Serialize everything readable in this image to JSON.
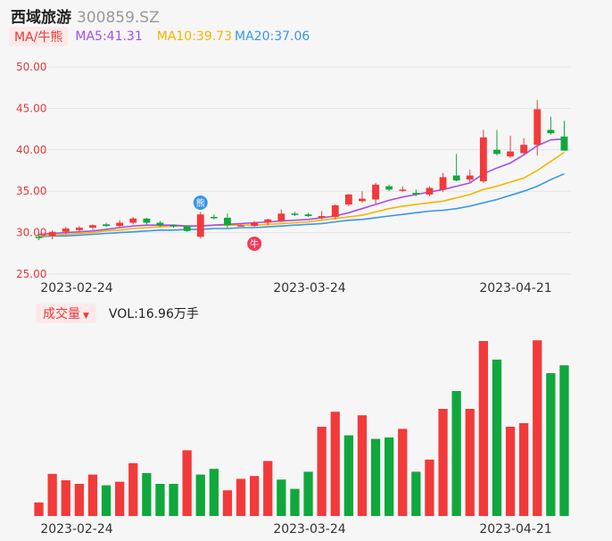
{
  "header": {
    "name": "西域旅游",
    "code": "300859.SZ"
  },
  "ma_bar": {
    "tag": "MA/牛熊",
    "ma5": "MA5:41.31",
    "ma10": "MA10:39.73",
    "ma20": "MA20:37.06"
  },
  "vol_bar": {
    "tag": "成交量",
    "value": "VOL:16.96万手"
  },
  "colors": {
    "up": "#f23a3a",
    "down": "#0fa83c",
    "ma5": "#a64ee8",
    "ma10": "#f5b400",
    "ma20": "#3a95ea"
  },
  "chart_data": [
    {
      "type": "candlestick",
      "ylim": [
        25,
        50
      ],
      "y_ticks": [
        "50.00",
        "45.00",
        "40.00",
        "35.00",
        "30.00",
        "25.00"
      ],
      "x_ticks": [
        "2023-02-24",
        "2023-03-24",
        "2023-04-21"
      ],
      "markers": [
        "熊",
        "牛"
      ],
      "ohlc": [
        [
          29.5,
          29.8,
          29.1,
          29.4
        ],
        [
          29.6,
          30.3,
          29.2,
          30.1
        ],
        [
          30.1,
          30.7,
          29.8,
          30.5
        ],
        [
          30.3,
          30.8,
          30.0,
          30.6
        ],
        [
          30.6,
          31.0,
          30.3,
          30.9
        ],
        [
          31.0,
          31.2,
          30.7,
          30.8
        ],
        [
          30.8,
          31.5,
          30.6,
          31.2
        ],
        [
          31.2,
          31.9,
          31.0,
          31.7
        ],
        [
          31.7,
          31.8,
          31.0,
          31.2
        ],
        [
          31.2,
          31.4,
          30.7,
          30.9
        ],
        [
          30.9,
          31.0,
          30.6,
          30.8
        ],
        [
          30.8,
          30.9,
          30.1,
          30.2
        ],
        [
          29.5,
          32.5,
          29.3,
          32.2
        ],
        [
          31.9,
          32.2,
          31.6,
          31.8
        ],
        [
          31.8,
          32.3,
          30.5,
          30.9
        ],
        [
          30.9,
          31.0,
          30.8,
          30.9
        ],
        [
          30.8,
          31.4,
          30.7,
          31.2
        ],
        [
          31.2,
          31.7,
          30.9,
          31.6
        ],
        [
          31.4,
          32.8,
          31.3,
          32.3
        ],
        [
          32.3,
          32.5,
          32.0,
          32.2
        ],
        [
          32.2,
          32.4,
          31.9,
          32.0
        ],
        [
          31.8,
          32.6,
          31.6,
          32.0
        ],
        [
          31.9,
          33.4,
          31.6,
          33.3
        ],
        [
          33.4,
          34.7,
          33.2,
          34.6
        ],
        [
          33.8,
          35.0,
          33.6,
          34.1
        ],
        [
          34.0,
          36.0,
          33.5,
          35.8
        ],
        [
          35.6,
          35.8,
          35.0,
          35.2
        ],
        [
          35.1,
          35.6,
          34.9,
          35.2
        ],
        [
          34.8,
          35.2,
          34.4,
          34.6
        ],
        [
          34.6,
          35.6,
          34.4,
          35.4
        ],
        [
          35.2,
          37.2,
          34.9,
          36.7
        ],
        [
          36.9,
          39.5,
          36.2,
          36.3
        ],
        [
          36.4,
          37.6,
          36.1,
          36.9
        ],
        [
          36.2,
          42.4,
          36.0,
          41.5
        ],
        [
          40.0,
          42.4,
          39.3,
          39.5
        ],
        [
          39.2,
          41.7,
          39.0,
          39.8
        ],
        [
          39.6,
          41.4,
          39.4,
          40.6
        ],
        [
          40.6,
          46.0,
          39.3,
          44.9
        ],
        [
          42.4,
          44.0,
          41.8,
          42.0
        ],
        [
          41.6,
          43.5,
          39.9,
          39.9
        ]
      ],
      "ma5": [
        29.8,
        29.9,
        30.0,
        30.1,
        30.2,
        30.4,
        30.6,
        30.8,
        30.9,
        30.9,
        30.9,
        30.8,
        30.8,
        30.9,
        31.0,
        31.1,
        31.2,
        31.3,
        31.4,
        31.5,
        31.6,
        31.8,
        32.0,
        32.4,
        32.9,
        33.4,
        33.9,
        34.3,
        34.6,
        34.9,
        35.2,
        35.6,
        36.0,
        37.1,
        37.8,
        38.4,
        39.4,
        40.5,
        41.2,
        41.3
      ],
      "ma10": [
        29.6,
        29.7,
        29.8,
        29.9,
        30.0,
        30.2,
        30.3,
        30.5,
        30.6,
        30.7,
        30.8,
        30.8,
        30.8,
        30.9,
        30.9,
        30.9,
        30.9,
        31.0,
        31.1,
        31.2,
        31.3,
        31.5,
        31.7,
        31.9,
        32.1,
        32.5,
        32.9,
        33.2,
        33.4,
        33.6,
        33.8,
        34.2,
        34.6,
        35.2,
        35.6,
        36.1,
        36.6,
        37.5,
        38.6,
        39.7
      ],
      "ma20": [
        29.5,
        29.6,
        29.6,
        29.7,
        29.8,
        29.9,
        30.0,
        30.1,
        30.2,
        30.3,
        30.3,
        30.4,
        30.4,
        30.5,
        30.5,
        30.6,
        30.6,
        30.7,
        30.8,
        30.9,
        31.0,
        31.1,
        31.3,
        31.5,
        31.6,
        31.8,
        32.0,
        32.2,
        32.4,
        32.6,
        32.7,
        32.9,
        33.2,
        33.6,
        34.0,
        34.5,
        35.0,
        35.6,
        36.4,
        37.1
      ]
    },
    {
      "type": "bar",
      "name": "VOL",
      "x_ticks": [
        "2023-02-24",
        "2023-03-24",
        "2023-04-21"
      ],
      "values": [
        19,
        59,
        50,
        45,
        58,
        43,
        48,
        74,
        60,
        45,
        45,
        92,
        58,
        66,
        36,
        52,
        56,
        77,
        51,
        38,
        62,
        125,
        146,
        113,
        141,
        108,
        110,
        122,
        62,
        79,
        150,
        175,
        150,
        245,
        219,
        125,
        130,
        246,
        200,
        211
      ],
      "up": [
        1,
        1,
        1,
        1,
        1,
        0,
        1,
        1,
        0,
        0,
        0,
        1,
        0,
        0,
        1,
        1,
        1,
        1,
        0,
        0,
        0,
        1,
        1,
        0,
        1,
        0,
        0,
        1,
        0,
        1,
        1,
        0,
        1,
        1,
        0,
        1,
        1,
        1,
        0,
        0
      ]
    }
  ]
}
